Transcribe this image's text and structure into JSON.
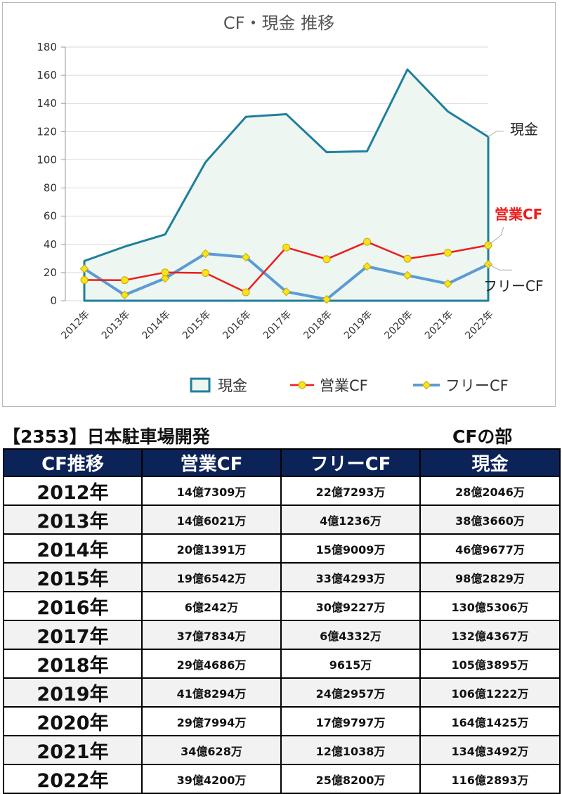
{
  "chart_data": {
    "type": "line",
    "title": "CF・現金 推移",
    "categories": [
      "2012年",
      "2013年",
      "2014年",
      "2015年",
      "2016年",
      "2017年",
      "2018年",
      "2019年",
      "2020年",
      "2021年",
      "2022年"
    ],
    "ylim": [
      0,
      180
    ],
    "yticks": [
      0,
      20,
      40,
      60,
      80,
      100,
      120,
      140,
      160,
      180
    ],
    "grid": true,
    "legend_position": "bottom",
    "series": [
      {
        "name": "現金",
        "kind": "area",
        "color": "#1f7f9c",
        "fill": "#eef6f1",
        "values": [
          28.2,
          38.4,
          47.0,
          98.3,
          130.5,
          132.4,
          105.4,
          106.1,
          164.1,
          134.3,
          116.3
        ]
      },
      {
        "name": "営業CF",
        "kind": "line-marker",
        "color": "#ee1c1c",
        "marker": "circle",
        "values": [
          14.7,
          14.6,
          20.1,
          19.7,
          6.0,
          37.8,
          29.5,
          41.8,
          29.8,
          34.1,
          39.4
        ]
      },
      {
        "name": "フリーCF",
        "kind": "line-marker",
        "color": "#5b9bd5",
        "marker": "diamond",
        "values": [
          22.7,
          4.1,
          15.9,
          33.4,
          30.9,
          6.4,
          1.0,
          24.3,
          18.0,
          12.1,
          25.8
        ]
      }
    ],
    "annotations": [
      {
        "text": "現金",
        "series": "現金",
        "color": "#222222"
      },
      {
        "text": "営業CF",
        "series": "営業CF",
        "color": "#ee1c1c"
      },
      {
        "text": "フリーCF",
        "series": "フリーCF",
        "color": "#222222"
      }
    ]
  },
  "company_title": "【2353】日本駐車場開発",
  "section_title": "CFの部",
  "table": {
    "headers": [
      "CF推移",
      "営業CF",
      "フリーCF",
      "現金"
    ],
    "rows": [
      [
        "2012年",
        "14億7309万",
        "22億7293万",
        "28億2046万"
      ],
      [
        "2013年",
        "14億6021万",
        "4億1236万",
        "38億3660万"
      ],
      [
        "2014年",
        "20億1391万",
        "15億9009万",
        "46億9677万"
      ],
      [
        "2015年",
        "19億6542万",
        "33億4293万",
        "98億2829万"
      ],
      [
        "2016年",
        "6億242万",
        "30億9227万",
        "130億5306万"
      ],
      [
        "2017年",
        "37億7834万",
        "6億4332万",
        "132億4367万"
      ],
      [
        "2018年",
        "29億4686万",
        "9615万",
        "105億3895万"
      ],
      [
        "2019年",
        "41億8294万",
        "24億2957万",
        "106億1222万"
      ],
      [
        "2020年",
        "29億7994万",
        "17億9797万",
        "164億1425万"
      ],
      [
        "2021年",
        "34億628万",
        "12億1038万",
        "134億3492万"
      ],
      [
        "2022年",
        "39億4200万",
        "25億8200万",
        "116億2893万"
      ]
    ]
  }
}
